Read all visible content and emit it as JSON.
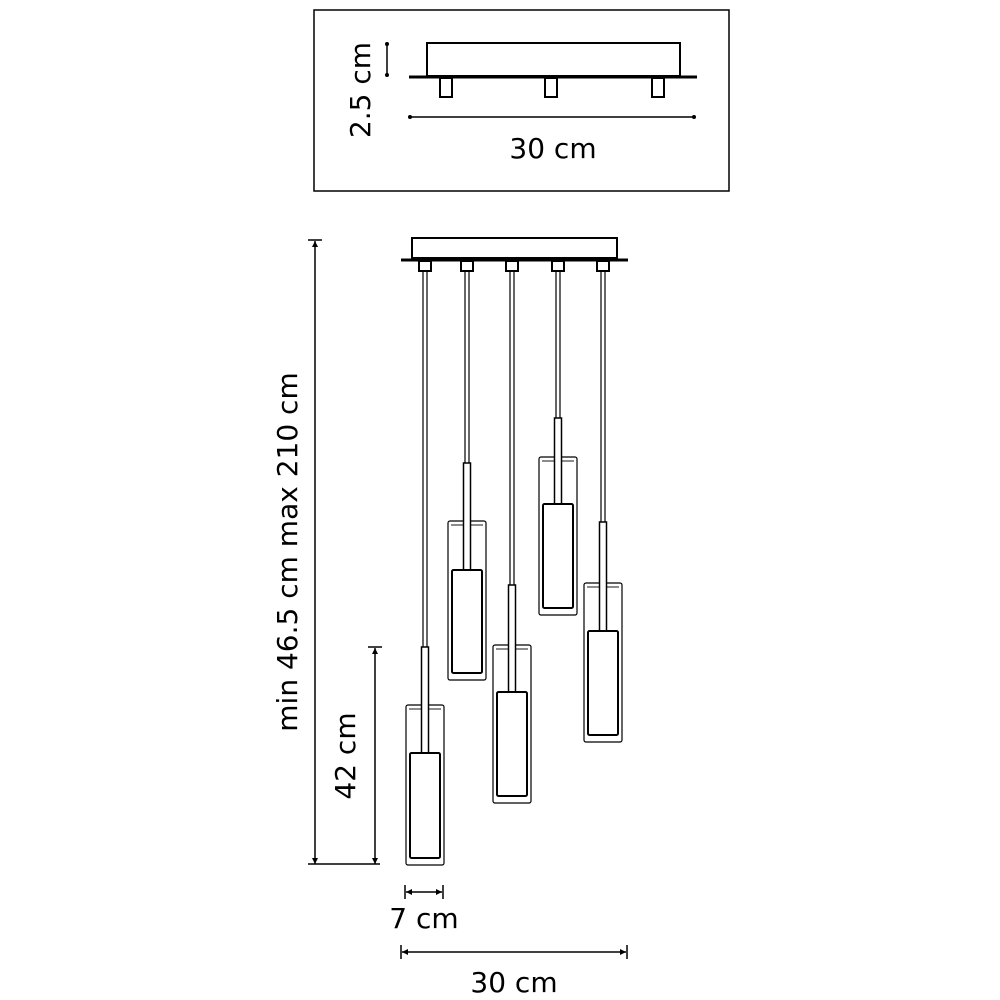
{
  "top_view": {
    "height_label": "2.5 cm",
    "width_label": "30 cm"
  },
  "front_view": {
    "total_height_label": "min 46.5 cm max 210 cm",
    "pendant_height_label": "42 cm",
    "pendant_width_label": "7 cm",
    "canopy_width_label": "30 cm"
  },
  "colors": {
    "line": "#000000",
    "background": "#ffffff"
  }
}
